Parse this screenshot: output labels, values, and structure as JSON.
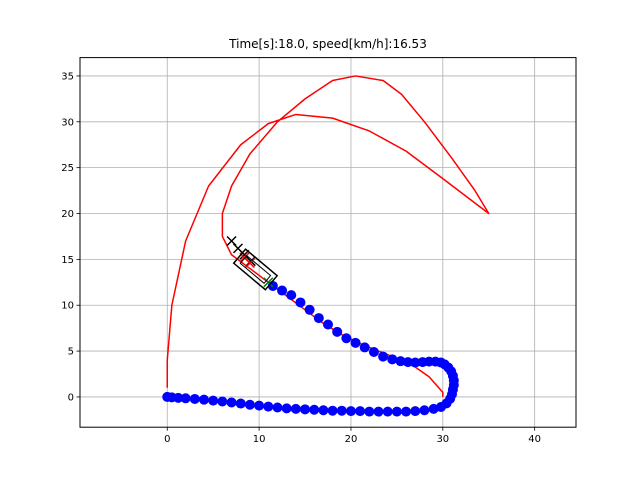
{
  "chart_data": {
    "type": "scatter",
    "title": "Time[s]:18.0, speed[km/h]:16.53",
    "xlabel": "",
    "ylabel": "",
    "xlim": [
      -9.5,
      44.5
    ],
    "ylim": [
      -3.3,
      37
    ],
    "grid": true,
    "xticks": [
      0,
      10,
      20,
      30,
      40
    ],
    "yticks": [
      0,
      5,
      10,
      15,
      20,
      25,
      30,
      35
    ],
    "colors": {
      "course": "#ff0000",
      "trajectory": "#0000ff",
      "vehicle": "#000000",
      "target": "#008000"
    },
    "series": [
      {
        "kind": "line",
        "color": "#ff0000",
        "points": [
          [
            0,
            1
          ],
          [
            0,
            4
          ],
          [
            0.5,
            10
          ],
          [
            2,
            17
          ],
          [
            4.5,
            23
          ],
          [
            8,
            27.5
          ],
          [
            11,
            29.8
          ],
          [
            14,
            30.8
          ],
          [
            18,
            30.4
          ],
          [
            22,
            29
          ],
          [
            26,
            26.8
          ],
          [
            30,
            23.8
          ],
          [
            35,
            20
          ],
          [
            33.5,
            22.5
          ],
          [
            31,
            26
          ],
          [
            28,
            30
          ],
          [
            25.5,
            33
          ],
          [
            23.5,
            34.5
          ],
          [
            20.5,
            35
          ],
          [
            18,
            34.5
          ],
          [
            15,
            32.5
          ],
          [
            12,
            30
          ],
          [
            9,
            26.5
          ],
          [
            7,
            23
          ],
          [
            6,
            20
          ],
          [
            6,
            17.5
          ],
          [
            7,
            15.5
          ],
          [
            9,
            14
          ],
          [
            11,
            12.5
          ],
          [
            13,
            11
          ],
          [
            15,
            9.5
          ],
          [
            17,
            8
          ],
          [
            19,
            6.8
          ],
          [
            21.5,
            5.6
          ],
          [
            24,
            4.6
          ],
          [
            26.5,
            3.6
          ],
          [
            28.5,
            2.2
          ],
          [
            30,
            0.5
          ],
          [
            30,
            0
          ]
        ]
      },
      {
        "kind": "points",
        "color": "#0000ff",
        "points": [
          [
            0,
            0
          ],
          [
            0.5,
            -0.05
          ],
          [
            1.2,
            -0.1
          ],
          [
            2,
            -0.15
          ],
          [
            3,
            -0.22
          ],
          [
            4,
            -0.3
          ],
          [
            5,
            -0.4
          ],
          [
            6,
            -0.5
          ],
          [
            7,
            -0.6
          ],
          [
            8,
            -0.72
          ],
          [
            9,
            -0.85
          ],
          [
            10,
            -0.95
          ],
          [
            11,
            -1.05
          ],
          [
            12,
            -1.15
          ],
          [
            13,
            -1.25
          ],
          [
            14,
            -1.3
          ],
          [
            15,
            -1.35
          ],
          [
            16,
            -1.4
          ],
          [
            17,
            -1.45
          ],
          [
            18,
            -1.5
          ],
          [
            19,
            -1.5
          ],
          [
            20,
            -1.55
          ],
          [
            21,
            -1.55
          ],
          [
            22,
            -1.6
          ],
          [
            23,
            -1.6
          ],
          [
            24,
            -1.6
          ],
          [
            25,
            -1.6
          ],
          [
            26,
            -1.6
          ],
          [
            27,
            -1.55
          ],
          [
            28,
            -1.45
          ],
          [
            29,
            -1.3
          ],
          [
            29.8,
            -1.1
          ],
          [
            30.4,
            -0.7
          ],
          [
            30.8,
            -0.2
          ],
          [
            31,
            0.3
          ],
          [
            31.1,
            0.8
          ],
          [
            31.2,
            1.3
          ],
          [
            31.2,
            1.8
          ],
          [
            31.1,
            2.3
          ],
          [
            30.9,
            2.8
          ],
          [
            30.6,
            3.2
          ],
          [
            30.2,
            3.55
          ],
          [
            29.8,
            3.75
          ],
          [
            29.2,
            3.85
          ],
          [
            28.5,
            3.85
          ],
          [
            27.8,
            3.8
          ],
          [
            27,
            3.75
          ],
          [
            26.2,
            3.8
          ],
          [
            25.4,
            3.9
          ],
          [
            24.5,
            4.1
          ],
          [
            23.5,
            4.4
          ],
          [
            22.5,
            4.9
          ],
          [
            21.5,
            5.4
          ],
          [
            20.5,
            5.9
          ],
          [
            19.5,
            6.4
          ],
          [
            18.5,
            7.1
          ],
          [
            17.5,
            7.9
          ],
          [
            16.5,
            8.6
          ],
          [
            15.5,
            9.5
          ],
          [
            14.5,
            10.3
          ],
          [
            13.5,
            11.1
          ],
          [
            12.5,
            11.6
          ],
          [
            11.5,
            12.1
          ]
        ]
      },
      {
        "kind": "crosses",
        "color": "#000000",
        "points": [
          [
            7,
            17
          ],
          [
            7.7,
            16.2
          ],
          [
            8.4,
            15.5
          ],
          [
            9.1,
            14.8
          ]
        ]
      },
      {
        "kind": "crosses",
        "color": "#ff0000",
        "points": [
          [
            8.4,
            15.2
          ],
          [
            9,
            14.6
          ]
        ]
      },
      {
        "kind": "crosses",
        "color": "#008000",
        "points": [
          [
            11,
            12.5
          ]
        ]
      },
      {
        "kind": "vehicle",
        "color": "#000000",
        "center": [
          9.6,
          13.9
        ],
        "heading_deg": -40,
        "length": 4.5,
        "width": 2.0
      }
    ]
  }
}
